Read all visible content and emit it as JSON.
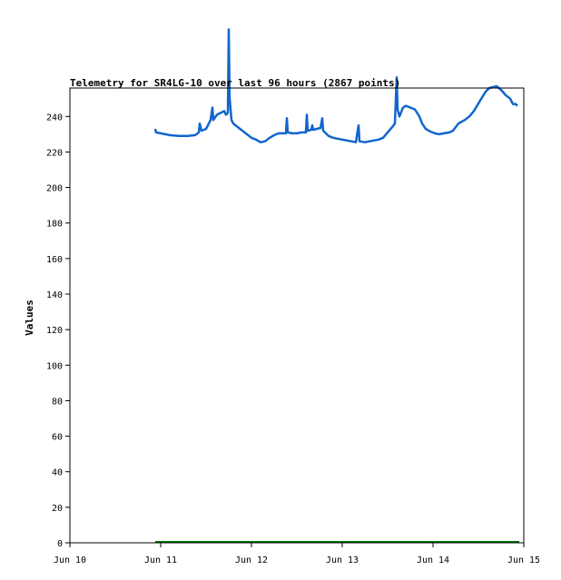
{
  "chart_data": {
    "type": "line",
    "title": "Telemetry for SR4LG-10 over last 96 hours (2867 points)",
    "xlabel": "",
    "ylabel": "Values",
    "x_ticks": [
      {
        "t": 0,
        "label": "Jun 10"
      },
      {
        "t": 1,
        "label": "Jun 11"
      },
      {
        "t": 2,
        "label": "Jun 12"
      },
      {
        "t": 3,
        "label": "Jun 13"
      },
      {
        "t": 4,
        "label": "Jun 14"
      },
      {
        "t": 5,
        "label": "Jun 15"
      }
    ],
    "y_ticks": [
      {
        "v": 0,
        "label": "0"
      },
      {
        "v": 20,
        "label": "20"
      },
      {
        "v": 40,
        "label": "40"
      },
      {
        "v": 60,
        "label": "60"
      },
      {
        "v": 80,
        "label": "80"
      },
      {
        "v": 100,
        "label": "100"
      },
      {
        "v": 120,
        "label": "120"
      },
      {
        "v": 140,
        "label": "140"
      },
      {
        "v": 160,
        "label": "160"
      },
      {
        "v": 180,
        "label": "180"
      },
      {
        "v": 200,
        "label": "200"
      },
      {
        "v": 220,
        "label": "220"
      },
      {
        "v": 240,
        "label": "240"
      }
    ],
    "xlim": [
      0,
      5
    ],
    "ylim": [
      0,
      256
    ],
    "grid": false,
    "series": [
      {
        "color": "#1166cc",
        "points": [
          [
            0.94,
            233
          ],
          [
            0.95,
            231
          ],
          [
            1.0,
            230.5
          ],
          [
            1.05,
            230
          ],
          [
            1.1,
            229.5
          ],
          [
            1.2,
            229
          ],
          [
            1.3,
            229
          ],
          [
            1.38,
            229.5
          ],
          [
            1.42,
            231
          ],
          [
            1.43,
            236
          ],
          [
            1.45,
            232
          ],
          [
            1.5,
            233
          ],
          [
            1.55,
            238
          ],
          [
            1.57,
            245
          ],
          [
            1.58,
            238
          ],
          [
            1.62,
            241
          ],
          [
            1.66,
            242
          ],
          [
            1.7,
            243
          ],
          [
            1.72,
            241
          ],
          [
            1.74,
            242
          ],
          [
            1.75,
            289
          ],
          [
            1.76,
            250
          ],
          [
            1.78,
            238
          ],
          [
            1.8,
            236
          ],
          [
            1.85,
            234
          ],
          [
            1.9,
            232
          ],
          [
            1.95,
            230
          ],
          [
            2.0,
            228
          ],
          [
            2.05,
            227
          ],
          [
            2.1,
            225.5
          ],
          [
            2.15,
            226
          ],
          [
            2.2,
            228
          ],
          [
            2.25,
            229.5
          ],
          [
            2.3,
            230.5
          ],
          [
            2.38,
            230.5
          ],
          [
            2.39,
            239
          ],
          [
            2.4,
            231
          ],
          [
            2.45,
            230.5
          ],
          [
            2.5,
            230.5
          ],
          [
            2.55,
            231
          ],
          [
            2.6,
            231
          ],
          [
            2.61,
            241
          ],
          [
            2.62,
            232
          ],
          [
            2.66,
            232.5
          ],
          [
            2.67,
            235
          ],
          [
            2.68,
            232.5
          ],
          [
            2.72,
            233
          ],
          [
            2.76,
            233.5
          ],
          [
            2.78,
            239
          ],
          [
            2.79,
            232
          ],
          [
            2.85,
            229
          ],
          [
            2.9,
            228
          ],
          [
            3.0,
            227
          ],
          [
            3.1,
            226
          ],
          [
            3.15,
            225.5
          ],
          [
            3.18,
            235
          ],
          [
            3.19,
            226
          ],
          [
            3.25,
            225.5
          ],
          [
            3.3,
            226
          ],
          [
            3.4,
            227
          ],
          [
            3.45,
            228
          ],
          [
            3.5,
            231
          ],
          [
            3.55,
            234
          ],
          [
            3.58,
            236
          ],
          [
            3.6,
            262
          ],
          [
            3.61,
            244
          ],
          [
            3.63,
            240
          ],
          [
            3.67,
            245
          ],
          [
            3.7,
            246
          ],
          [
            3.75,
            245
          ],
          [
            3.8,
            244
          ],
          [
            3.85,
            240
          ],
          [
            3.88,
            236
          ],
          [
            3.92,
            233
          ],
          [
            3.97,
            231.5
          ],
          [
            4.02,
            230.5
          ],
          [
            4.07,
            230
          ],
          [
            4.12,
            230.5
          ],
          [
            4.18,
            231
          ],
          [
            4.22,
            232
          ],
          [
            4.28,
            236
          ],
          [
            4.35,
            238
          ],
          [
            4.4,
            240
          ],
          [
            4.45,
            243
          ],
          [
            4.52,
            249
          ],
          [
            4.58,
            254
          ],
          [
            4.62,
            256
          ],
          [
            4.7,
            257
          ],
          [
            4.75,
            255
          ],
          [
            4.8,
            252
          ],
          [
            4.85,
            250
          ],
          [
            4.88,
            247
          ],
          [
            4.91,
            247
          ],
          [
            4.93,
            246
          ]
        ]
      },
      {
        "color": "#007700",
        "points": [
          [
            0.94,
            0.5
          ],
          [
            1.5,
            0.5
          ],
          [
            2.0,
            0.5
          ],
          [
            2.5,
            0.5
          ],
          [
            3.0,
            0.5
          ],
          [
            3.5,
            0.5
          ],
          [
            4.0,
            0.5
          ],
          [
            4.5,
            0.5
          ],
          [
            4.95,
            0.5
          ]
        ]
      }
    ]
  }
}
